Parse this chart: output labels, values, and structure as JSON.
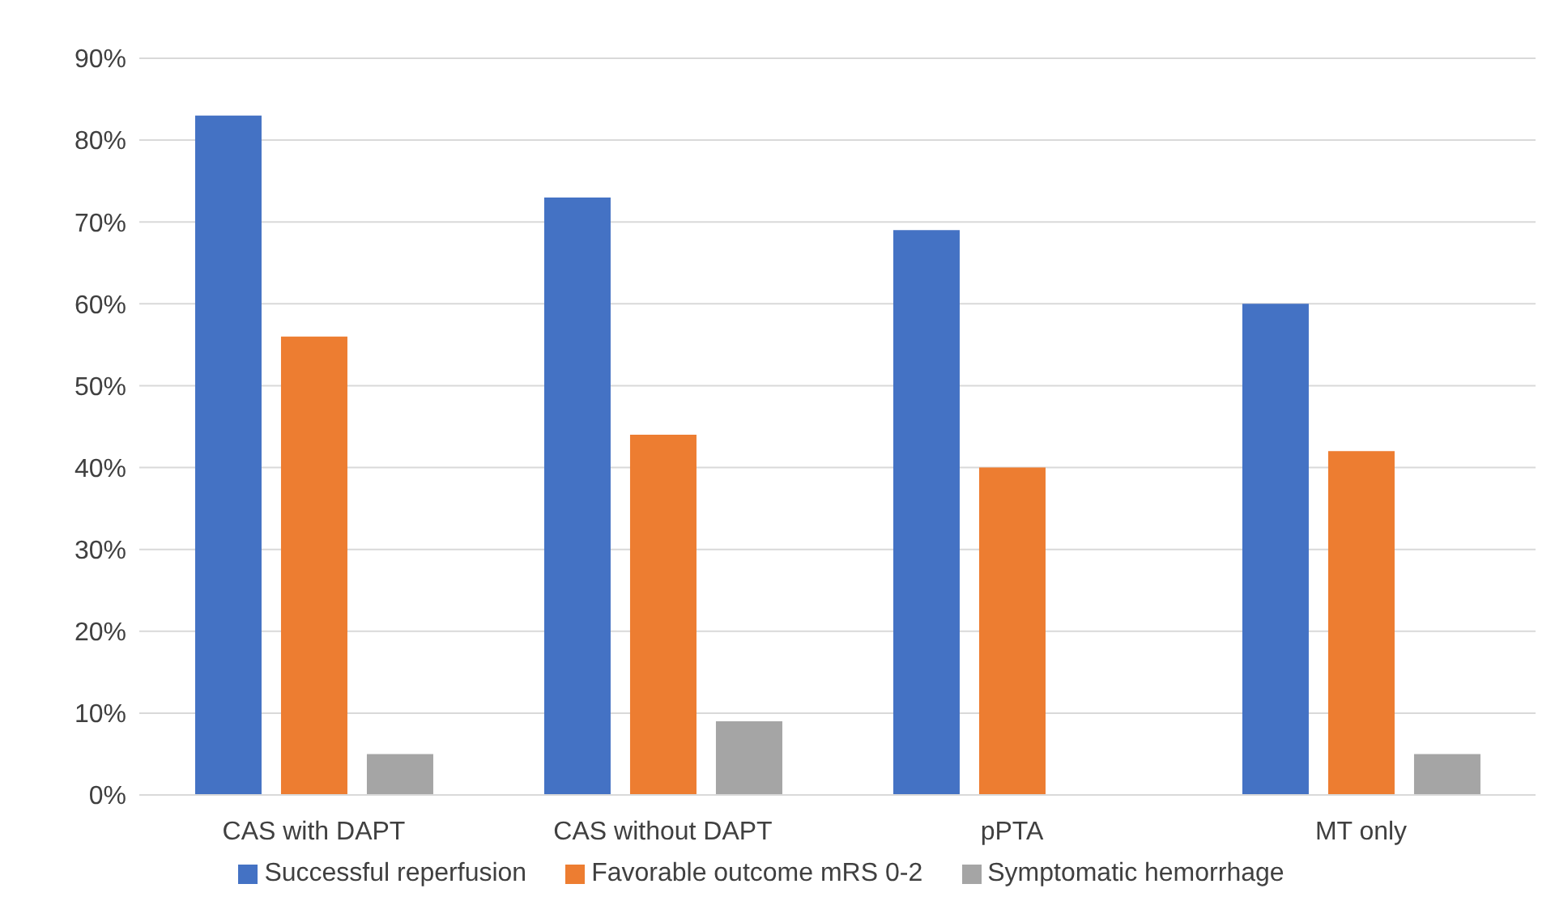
{
  "chart_data": {
    "type": "bar",
    "categories": [
      "CAS with DAPT",
      "CAS without DAPT",
      "pPTA",
      "MT only"
    ],
    "series": [
      {
        "name": "Successful reperfusion",
        "color": "#4472c4",
        "values": [
          83,
          73,
          69,
          60
        ]
      },
      {
        "name": "Favorable outcome mRS 0-2",
        "color": "#ed7d31",
        "values": [
          56,
          44,
          40,
          42
        ]
      },
      {
        "name": "Symptomatic hemorrhage",
        "color": "#a5a5a5",
        "values": [
          5,
          9,
          0,
          5
        ]
      }
    ],
    "ylim": [
      0,
      90
    ],
    "yticks": [
      {
        "value": 0,
        "label": "0%"
      },
      {
        "value": 10,
        "label": "10%"
      },
      {
        "value": 20,
        "label": "20%"
      },
      {
        "value": 30,
        "label": "30%"
      },
      {
        "value": 40,
        "label": "40%"
      },
      {
        "value": 50,
        "label": "50%"
      },
      {
        "value": 60,
        "label": "60%"
      },
      {
        "value": 70,
        "label": "70%"
      },
      {
        "value": 80,
        "label": "80%"
      },
      {
        "value": 90,
        "label": "90%"
      }
    ],
    "grid": "y",
    "legend": "bottom"
  }
}
